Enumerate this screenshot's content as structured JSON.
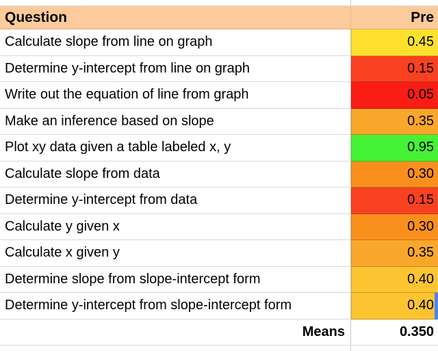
{
  "table": {
    "header": {
      "question": "Question",
      "value": "Pre"
    },
    "rows": [
      {
        "question": "Calculate slope from line on graph",
        "value": "0.45",
        "color": "#fde12d"
      },
      {
        "question": "Determine y-intercept from line on graph",
        "value": "0.15",
        "color": "#f84120"
      },
      {
        "question": "Write out the equation of line from graph",
        "value": "0.05",
        "color": "#f91d15"
      },
      {
        "question": "Make an inference based on slope",
        "value": "0.35",
        "color": "#f9a72b"
      },
      {
        "question": "Plot xy data given a table labeled x, y",
        "value": "0.95",
        "color": "#45f235"
      },
      {
        "question": "Calculate slope from data",
        "value": "0.30",
        "color": "#f9901e"
      },
      {
        "question": "Determine y-intercept from data",
        "value": "0.15",
        "color": "#f84120"
      },
      {
        "question": "Calculate y given x",
        "value": "0.30",
        "color": "#f9901e"
      },
      {
        "question": "Calculate x given y",
        "value": "0.35",
        "color": "#f9a72b"
      },
      {
        "question": "Determine slope from slope-intercept form",
        "value": "0.40",
        "color": "#fdc431"
      },
      {
        "question": "Determine y-intercept from slope-intercept form",
        "value": "0.40",
        "color": "#fdc431"
      }
    ],
    "footer": {
      "label": "Means",
      "value": "0.350"
    },
    "colors": {
      "header_bg": "#fcca9b",
      "gridline": "#d9d9d9",
      "accent_blue": "#4a86e8"
    }
  }
}
